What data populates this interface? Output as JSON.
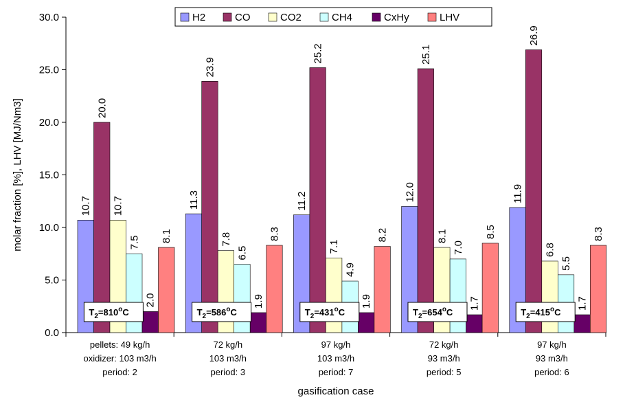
{
  "chart_data": {
    "type": "bar",
    "ylabel": "molar fraction [%], LHV [MJ/Nm3]",
    "xlabel": "gasification case",
    "ylim": [
      0,
      30
    ],
    "yticks": [
      "0.0",
      "5.0",
      "10.0",
      "15.0",
      "20.0",
      "25.0",
      "30.0"
    ],
    "legend_position": "top",
    "categories": [
      [
        "pellets: 49 kg/h",
        "oxidizer: 103 m3/h",
        "period: 2"
      ],
      [
        "72 kg/h",
        "103 m3/h",
        "period: 3"
      ],
      [
        "97 kg/h",
        "103 m3/h",
        "period: 7"
      ],
      [
        "72 kg/h",
        "93 m3/h",
        "period: 5"
      ],
      [
        "97 kg/h",
        "93 m3/h",
        "period: 6"
      ]
    ],
    "series": [
      {
        "name": "H2",
        "color": "#9999ff",
        "values": [
          10.7,
          11.3,
          11.2,
          12.0,
          11.9
        ],
        "labels": [
          "10.7",
          "11.3",
          "11.2",
          "12.0",
          "11.9"
        ]
      },
      {
        "name": "CO",
        "color": "#993366",
        "values": [
          20.0,
          23.9,
          25.2,
          25.1,
          26.9
        ],
        "labels": [
          "20.0",
          "23.9",
          "25.2",
          "25.1",
          "26.9"
        ]
      },
      {
        "name": "CO2",
        "color": "#ffffcc",
        "values": [
          10.7,
          7.8,
          7.1,
          8.1,
          6.8
        ],
        "labels": [
          "10.7",
          "7.8",
          "7.1",
          "8.1",
          "6.8"
        ]
      },
      {
        "name": "CH4",
        "color": "#ccffff",
        "values": [
          7.5,
          6.5,
          4.9,
          7.0,
          5.5
        ],
        "labels": [
          "7.5",
          "6.5",
          "4.9",
          "7.0",
          "5.5"
        ]
      },
      {
        "name": "CxHy",
        "color": "#660066",
        "values": [
          2.0,
          1.9,
          1.9,
          1.7,
          1.7
        ],
        "labels": [
          "2.0",
          "1.9",
          "1.9",
          "1.7",
          "1.7"
        ]
      },
      {
        "name": "LHV",
        "color": "#ff8080",
        "values": [
          8.1,
          8.3,
          8.2,
          8.5,
          8.3
        ],
        "labels": [
          "8.1",
          "8.3",
          "8.2",
          "8.5",
          "8.3"
        ]
      }
    ],
    "annotations": [
      {
        "prefix": "T",
        "sub": "2",
        "value": "=810",
        "sup": "o",
        "unit": "C"
      },
      {
        "prefix": "T",
        "sub": "2",
        "value": "=586",
        "sup": "o",
        "unit": "C"
      },
      {
        "prefix": "T",
        "sub": "2",
        "value": "=431",
        "sup": "o",
        "unit": "C"
      },
      {
        "prefix": "T",
        "sub": "2",
        "value": "=654",
        "sup": "o",
        "unit": "C"
      },
      {
        "prefix": "T",
        "sub": "2",
        "value": "=415",
        "sup": "o",
        "unit": "C"
      }
    ]
  }
}
